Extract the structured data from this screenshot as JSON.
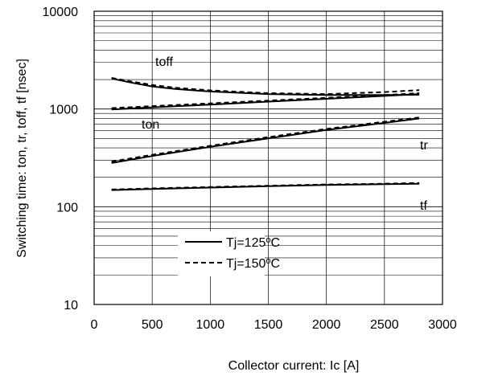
{
  "chart_data": {
    "type": "line",
    "title": "",
    "xlabel": "Collector current: Ic [A]",
    "ylabel": "Switching time: ton, tr, toff, tf [nsec]",
    "xlim": [
      0,
      3000
    ],
    "ylim": [
      10,
      10000
    ],
    "yscale": "log",
    "x_ticks": [
      "0",
      "500",
      "1000",
      "1500",
      "2000",
      "2500",
      "3000"
    ],
    "y_ticks": [
      "10",
      "100",
      "1000",
      "10000"
    ],
    "grid": true,
    "legend_position": "bottom-center",
    "legend": [
      {
        "label_main": "Tj=125",
        "label_sup": "o",
        "label_end": "C",
        "style": "solid"
      },
      {
        "label_main": "Tj=150",
        "label_sup": "o",
        "label_end": "C",
        "style": "dashed"
      }
    ],
    "curve_labels": {
      "toff": "toff",
      "ton": "ton",
      "tr": "tr",
      "tf": "tf"
    },
    "series": [
      {
        "curve": "toff",
        "temp": "Tj=125oC",
        "style": "solid",
        "x": [
          150,
          300,
          500,
          700,
          1000,
          1500,
          2000,
          2500,
          2800
        ],
        "y": [
          2050,
          1880,
          1700,
          1600,
          1510,
          1420,
          1390,
          1390,
          1400
        ]
      },
      {
        "curve": "toff",
        "temp": "Tj=150oC",
        "style": "dashed",
        "x": [
          150,
          300,
          500,
          700,
          1000,
          1500,
          2000,
          2500,
          2800
        ],
        "y": [
          2080,
          1930,
          1760,
          1650,
          1550,
          1450,
          1420,
          1490,
          1560
        ]
      },
      {
        "curve": "ton",
        "temp": "Tj=125oC",
        "style": "solid",
        "x": [
          150,
          500,
          1000,
          1500,
          2000,
          2500,
          2800
        ],
        "y": [
          990,
          1040,
          1110,
          1190,
          1270,
          1360,
          1420
        ]
      },
      {
        "curve": "ton",
        "temp": "Tj=150oC",
        "style": "dashed",
        "x": [
          150,
          500,
          1000,
          1500,
          2000,
          2500,
          2800
        ],
        "y": [
          1020,
          1070,
          1140,
          1220,
          1300,
          1390,
          1450
        ]
      },
      {
        "curve": "tr",
        "temp": "Tj=125oC",
        "style": "solid",
        "x": [
          150,
          500,
          1000,
          1500,
          2000,
          2500,
          2800
        ],
        "y": [
          280,
          330,
          410,
          500,
          610,
          720,
          800
        ]
      },
      {
        "curve": "tr",
        "temp": "Tj=150oC",
        "style": "dashed",
        "x": [
          150,
          500,
          1000,
          1500,
          2000,
          2500,
          2800
        ],
        "y": [
          290,
          340,
          420,
          515,
          625,
          740,
          820
        ]
      },
      {
        "curve": "tf",
        "temp": "Tj=125oC",
        "style": "solid",
        "x": [
          150,
          500,
          1000,
          1500,
          2000,
          2500,
          2800
        ],
        "y": [
          148,
          152,
          157,
          162,
          167,
          170,
          172
        ]
      },
      {
        "curve": "tf",
        "temp": "Tj=150oC",
        "style": "dashed",
        "x": [
          150,
          500,
          1000,
          1500,
          2000,
          2500,
          2800
        ],
        "y": [
          150,
          154,
          159,
          164,
          169,
          172,
          175
        ]
      }
    ]
  }
}
